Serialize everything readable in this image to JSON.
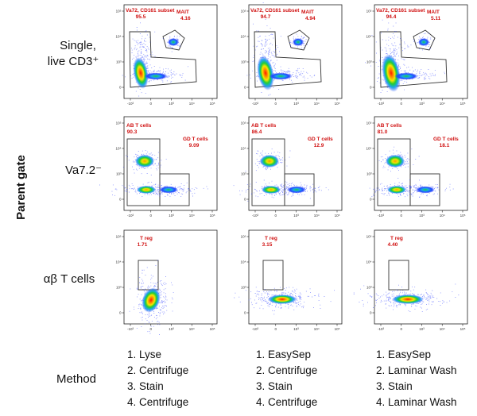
{
  "chart_data": {
    "type": "scatter",
    "y_group_label": "Parent gate",
    "rows": [
      {
        "label": "Single, live CD3⁺"
      },
      {
        "label": "Va7.2⁻"
      },
      {
        "label": "αβ T cells"
      }
    ],
    "axis_ticks": {
      "x": [
        "-10³",
        "0",
        "10³",
        "10⁴",
        "10⁵"
      ],
      "y": [
        "10⁵",
        "10⁴",
        "10³",
        "0"
      ]
    },
    "panels": [
      {
        "row": 0,
        "col": 0,
        "gates": [
          {
            "label": "Va72, CD161 subset",
            "value": "95.5"
          },
          {
            "label": "MAIT",
            "value": "4.16"
          }
        ]
      },
      {
        "row": 0,
        "col": 1,
        "gates": [
          {
            "label": "Va72, CD161 subset",
            "value": "94.7"
          },
          {
            "label": "MAIT",
            "value": "4.94"
          }
        ]
      },
      {
        "row": 0,
        "col": 2,
        "gates": [
          {
            "label": "Va72, CD161 subset",
            "value": "94.4"
          },
          {
            "label": "MAIT",
            "value": "5.11"
          }
        ]
      },
      {
        "row": 1,
        "col": 0,
        "gates": [
          {
            "label": "AB T cells",
            "value": "90.3"
          },
          {
            "label": "GD T cells",
            "value": "9.09"
          }
        ]
      },
      {
        "row": 1,
        "col": 1,
        "gates": [
          {
            "label": "AB T cells",
            "value": "86.4"
          },
          {
            "label": "GD T cells",
            "value": "12.9"
          }
        ]
      },
      {
        "row": 1,
        "col": 2,
        "gates": [
          {
            "label": "AB T cells",
            "value": "81.0"
          },
          {
            "label": "GD T cells",
            "value": "18.1"
          }
        ]
      },
      {
        "row": 2,
        "col": 0,
        "gates": [
          {
            "label": "T reg",
            "value": "1.71"
          }
        ]
      },
      {
        "row": 2,
        "col": 1,
        "gates": [
          {
            "label": "T reg",
            "value": "3.15"
          }
        ]
      },
      {
        "row": 2,
        "col": 2,
        "gates": [
          {
            "label": "T reg",
            "value": "4.40"
          }
        ]
      }
    ],
    "methods": {
      "title": "Method",
      "columns": [
        [
          "1. Lyse",
          "2. Centrifuge",
          "3. Stain",
          "4. Centrifuge"
        ],
        [
          "1. EasySep",
          "2. Centrifuge",
          "3. Stain",
          "4. Centrifuge"
        ],
        [
          "1. EasySep",
          "2. Laminar Wash",
          "3. Stain",
          "4. Laminar Wash"
        ]
      ]
    }
  }
}
